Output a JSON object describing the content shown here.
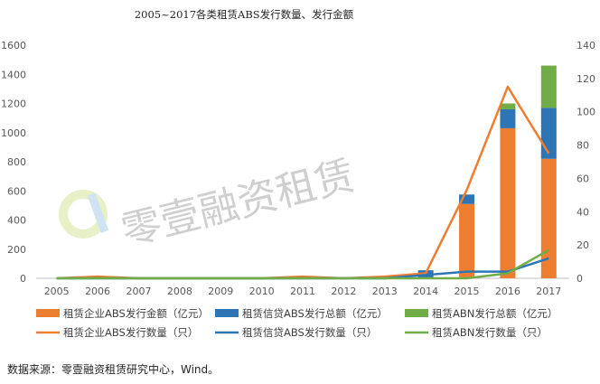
{
  "chart_data": {
    "type": "bar",
    "title": "2005~2017各类租赁ABS发行数量、发行金额",
    "categories": [
      "2005",
      "2006",
      "2007",
      "2008",
      "2009",
      "2010",
      "2011",
      "2012",
      "2013",
      "2014",
      "2015",
      "2016",
      "2017"
    ],
    "bar_series": [
      {
        "name": "租赁企业ABS发行金额（亿元）",
        "color": "#ED7D31",
        "values": [
          0,
          10,
          0,
          0,
          0,
          0,
          10,
          0,
          15,
          0,
          510,
          1030,
          820
        ]
      },
      {
        "name": "租赁信贷ABS发行总额（亿元）",
        "color": "#2E75B6",
        "values": [
          0,
          0,
          0,
          0,
          0,
          0,
          0,
          0,
          0,
          55,
          65,
          130,
          350
        ]
      },
      {
        "name": "租赁ABN发行总额（亿元）",
        "color": "#70AD47",
        "values": [
          0,
          0,
          0,
          0,
          0,
          0,
          0,
          0,
          0,
          0,
          0,
          40,
          290
        ]
      }
    ],
    "line_series": [
      {
        "name": "租赁企业ABS发行数量（只）",
        "color": "#ED7D31",
        "values": [
          0,
          1,
          0,
          0,
          0,
          0,
          1,
          0,
          1,
          3,
          53,
          115,
          75
        ]
      },
      {
        "name": "租赁信贷ABS发行数量（只）",
        "color": "#2E75B6",
        "values": [
          0,
          0,
          0,
          0,
          0,
          0,
          0,
          0,
          0,
          2,
          4,
          4,
          12
        ]
      },
      {
        "name": "租赁ABN发行数量（只）",
        "color": "#70AD47",
        "values": [
          0,
          0,
          0,
          0,
          0,
          0,
          0,
          0,
          0,
          0,
          0,
          3,
          17
        ]
      }
    ],
    "y_left": {
      "min": 0,
      "max": 1600,
      "ticks": [
        "0",
        "200",
        "400",
        "600",
        "800",
        "1000",
        "1200",
        "1400",
        "1600"
      ]
    },
    "y_right": {
      "min": 0,
      "max": 140,
      "ticks": [
        "0",
        "20",
        "40",
        "60",
        "80",
        "100",
        "120",
        "140"
      ]
    },
    "legend_position": "bottom",
    "grid": false
  },
  "watermark": "零壹融资租赁",
  "source": "数据来源：零壹融资租赁研究中心，Wind。"
}
